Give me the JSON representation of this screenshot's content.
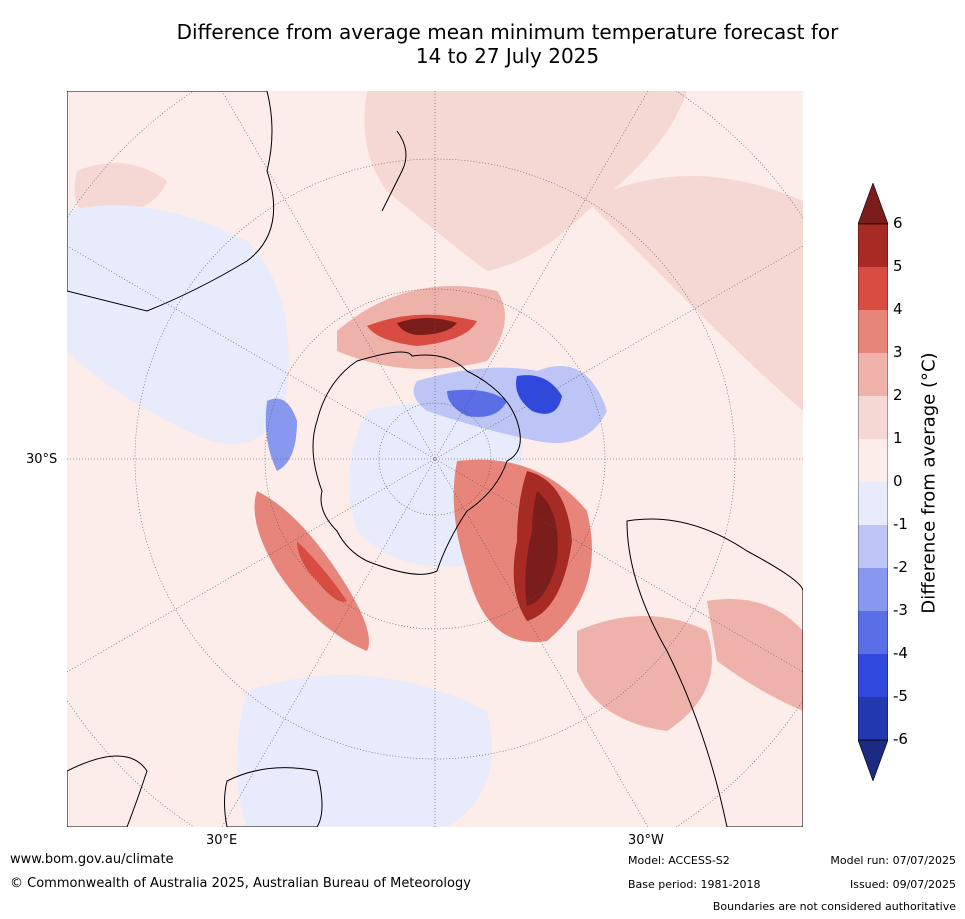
{
  "title_line1": "Difference from average mean minimum temperature forecast for",
  "title_line2": "14 to 27 July 2025",
  "axis_labels": {
    "lat": "30°S",
    "lon_east": "30°E",
    "lon_west": "30°W"
  },
  "colorbar": {
    "label": "Difference from average (°C)",
    "ticks": [
      "6",
      "5",
      "4",
      "3",
      "2",
      "1",
      "0",
      "-1",
      "-2",
      "-3",
      "-4",
      "-5",
      "-6"
    ],
    "colors": [
      "#7b1d1a",
      "#a82a24",
      "#d94c42",
      "#e8857b",
      "#efb2ab",
      "#f5d7d3",
      "#fcecea",
      "#e7ebfb",
      "#bcc5f5",
      "#8798ee",
      "#5a6fe6",
      "#3048db",
      "#2339b0",
      "#1c2a82"
    ]
  },
  "footer": {
    "url": "www.bom.gov.au/climate",
    "copyright": "© Commonwealth of Australia 2025, Australian Bureau of Meteorology",
    "model": "Model: ACCESS-S2",
    "base_period": "Base period: 1981-2018",
    "model_run": "Model run: 07/07/2025",
    "issued": "Issued: 09/07/2025",
    "disclaimer": "Boundaries are not considered authoritative"
  }
}
